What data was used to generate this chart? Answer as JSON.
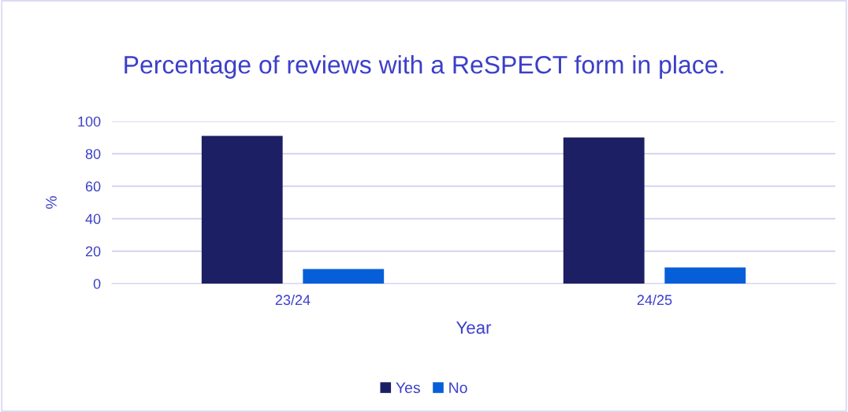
{
  "chart_data": {
    "type": "bar",
    "title": "Percentage of reviews with a ReSPECT form in place.",
    "xlabel": "Year",
    "ylabel": "%",
    "categories": [
      "23/24",
      "24/25"
    ],
    "series": [
      {
        "name": "Yes",
        "color": "#1c1f63",
        "values": [
          91,
          90
        ]
      },
      {
        "name": "No",
        "color": "#065fd8",
        "values": [
          9,
          10
        ]
      }
    ],
    "ylim": [
      0,
      100
    ],
    "yticks": [
      0,
      20,
      40,
      60,
      80,
      100
    ],
    "grid": "y",
    "legend": "bottom"
  }
}
